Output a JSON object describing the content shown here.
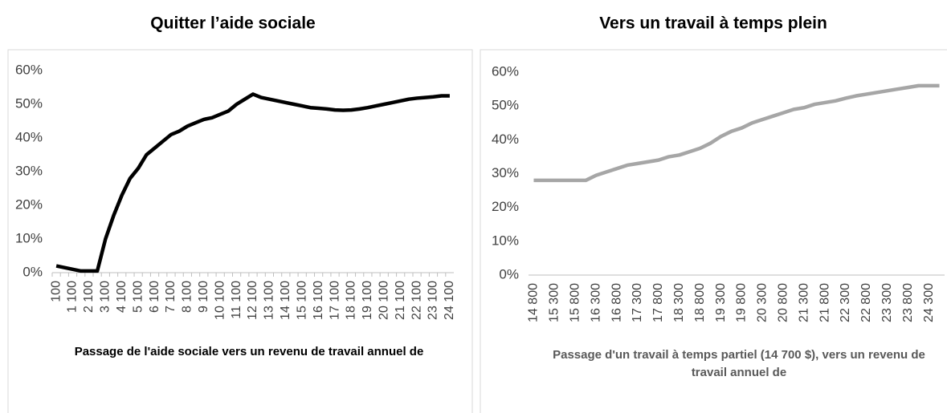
{
  "chart_data": [
    {
      "type": "line",
      "title": "Quitter l’aide sociale",
      "x_label": "Passage de l'aide sociale vers un revenu de travail annuel de",
      "categories": [
        "100",
        null,
        "1 100",
        null,
        "2 100",
        null,
        "3 100",
        null,
        "4 100",
        null,
        "5 100",
        null,
        "6 100",
        null,
        "7 100",
        null,
        "8 100",
        null,
        "9 100",
        null,
        "10 100",
        null,
        "11 100",
        null,
        "12 100",
        null,
        "13 100",
        null,
        "14 100",
        null,
        "15 100",
        null,
        "16 100",
        null,
        "17 100",
        null,
        "18 100",
        null,
        "19 100",
        null,
        "20 100",
        null,
        "21 100",
        null,
        "22 100",
        null,
        "23 100",
        null,
        "24 100"
      ],
      "series": [
        {
          "color": "#000000",
          "values": [
            2,
            1.5,
            1,
            0.5,
            0.5,
            0.5,
            10,
            17,
            23,
            28,
            31,
            35,
            37,
            39,
            41,
            42,
            43.5,
            44.5,
            45.5,
            46,
            47,
            48,
            50,
            51.5,
            53,
            52,
            51.5,
            51,
            50.5,
            50,
            49.5,
            49,
            48.8,
            48.6,
            48.3,
            48.2,
            48.3,
            48.6,
            49,
            49.5,
            50,
            50.5,
            51,
            51.5,
            51.8,
            52,
            52.2,
            52.5,
            52.5
          ]
        }
      ],
      "ylim": [
        0,
        60
      ],
      "yticks": [
        {
          "value": 0,
          "label": "0%"
        },
        {
          "value": 10,
          "label": "10%"
        },
        {
          "value": 20,
          "label": "20%"
        },
        {
          "value": 30,
          "label": "30%"
        },
        {
          "value": 40,
          "label": "40%"
        },
        {
          "value": 50,
          "label": "50%"
        },
        {
          "value": 60,
          "label": "60%"
        }
      ],
      "grid": false,
      "x_tick_marks": true
    },
    {
      "type": "line",
      "title": "Vers un travail à temps plein",
      "x_label": "Passage d'un travail à temps partiel (14 700 $), vers un revenu de travail annuel de",
      "categories": [
        "14 800",
        null,
        "15 300",
        null,
        "15 800",
        null,
        "16 300",
        null,
        "16 800",
        null,
        "17 300",
        null,
        "17 800",
        null,
        "18 300",
        null,
        "18 800",
        null,
        "19 300",
        null,
        "19 800",
        null,
        "20 300",
        null,
        "20 800",
        null,
        "21 300",
        null,
        "21 800",
        null,
        "22 300",
        null,
        "22 800",
        null,
        "23 300",
        null,
        "23 800",
        null,
        "24 300",
        null
      ],
      "series": [
        {
          "color": "#a6a6a6",
          "values": [
            28,
            28,
            28,
            28,
            28,
            28,
            29.5,
            30.5,
            31.5,
            32.5,
            33,
            33.5,
            34,
            35,
            35.5,
            36.5,
            37.5,
            39,
            41,
            42.5,
            43.5,
            45,
            46,
            47,
            48,
            49,
            49.5,
            50.5,
            51,
            51.5,
            52.3,
            53,
            53.5,
            54,
            54.5,
            55,
            55.5,
            56,
            56,
            56
          ]
        }
      ],
      "ylim": [
        0,
        60
      ],
      "yticks": [
        {
          "value": 0,
          "label": "0%"
        },
        {
          "value": 10,
          "label": "10%"
        },
        {
          "value": 20,
          "label": "20%"
        },
        {
          "value": 30,
          "label": "30%"
        },
        {
          "value": 40,
          "label": "40%"
        },
        {
          "value": 50,
          "label": "50%"
        },
        {
          "value": 60,
          "label": "60%"
        }
      ],
      "grid": false,
      "x_tick_marks": false
    }
  ]
}
